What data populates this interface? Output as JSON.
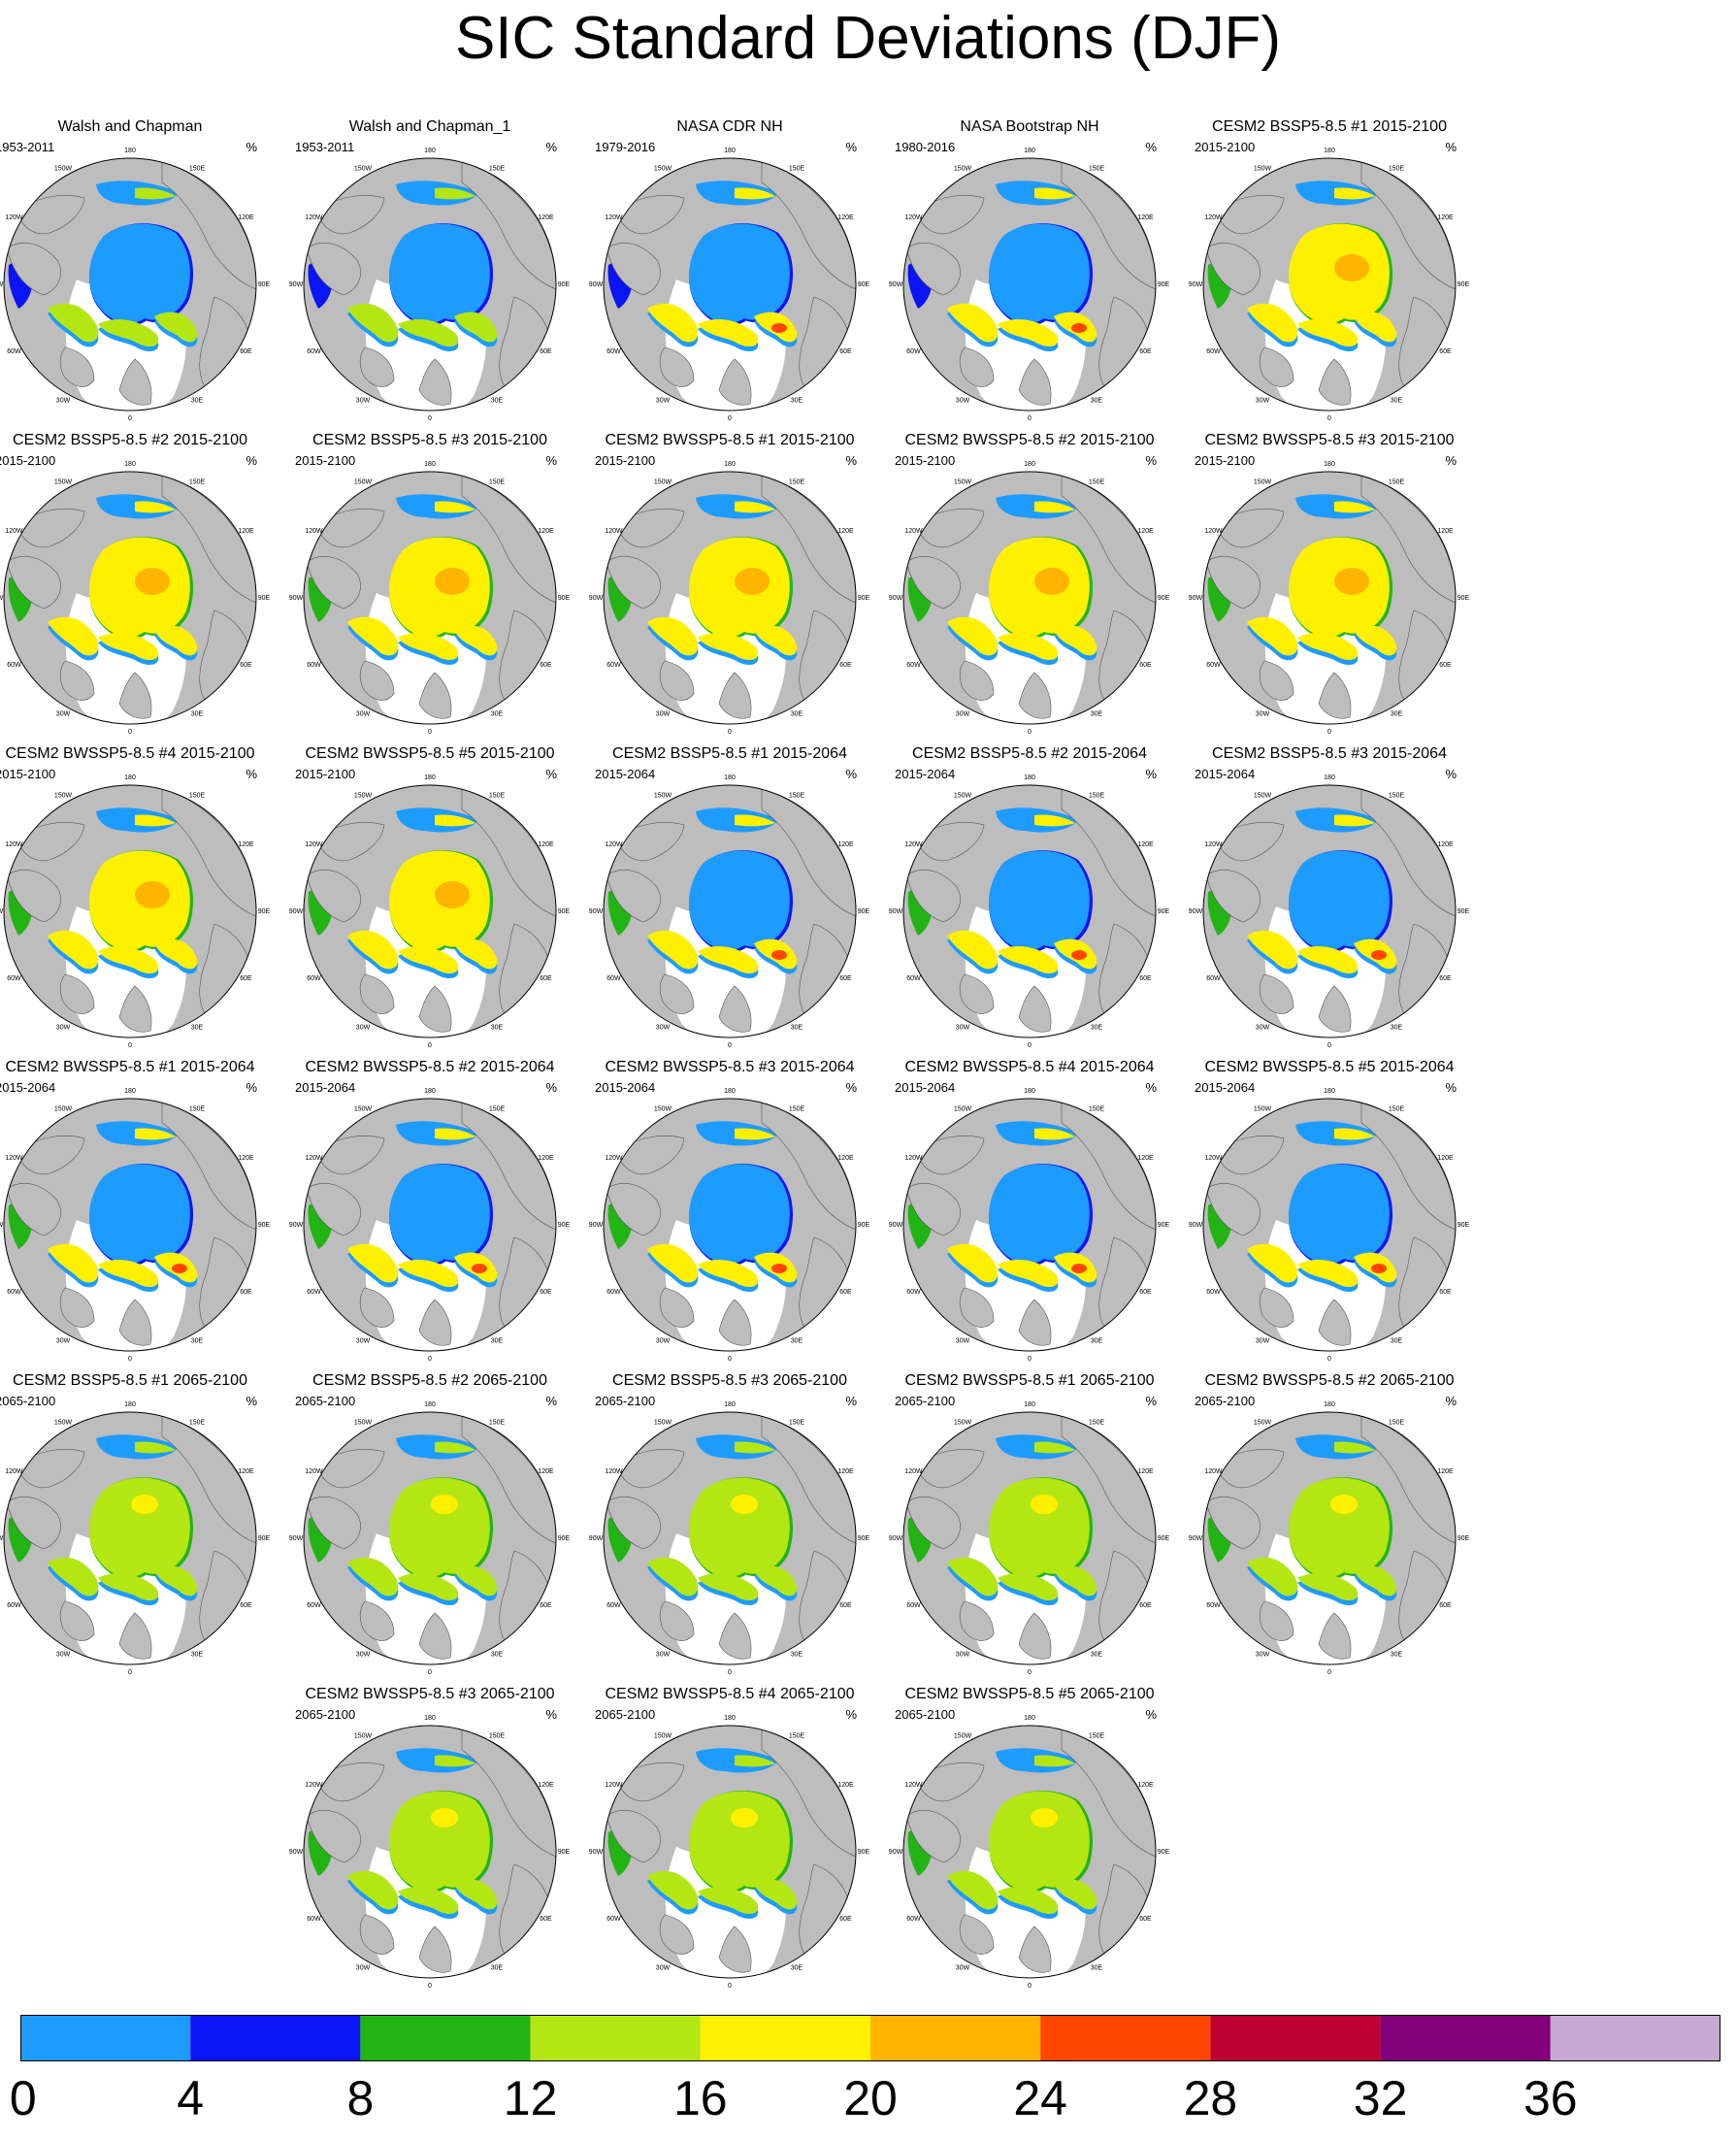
{
  "title": "SIC Standard Deviations (DJF)",
  "unit": "%",
  "lon_labels": [
    "180",
    "150E",
    "120E",
    "90E",
    "60E",
    "30E",
    "0",
    "30W",
    "60W",
    "90W",
    "120W",
    "150W"
  ],
  "chart_data": [
    {
      "type": "heatmap",
      "title": "Walsh and Chapman",
      "period": "1953-2011",
      "pattern": "obs"
    },
    {
      "type": "heatmap",
      "title": "Walsh and Chapman_1",
      "period": "1953-2011",
      "pattern": "obs"
    },
    {
      "type": "heatmap",
      "title": "NASA CDR NH",
      "period": "1979-2016",
      "pattern": "sat"
    },
    {
      "type": "heatmap",
      "title": "NASA Bootstrap NH",
      "period": "1980-2016",
      "pattern": "sat"
    },
    {
      "type": "heatmap",
      "title": "CESM2 BSSP5-8.5 #1 2015-2100",
      "period": "2015-2100",
      "pattern": "full"
    },
    {
      "type": "heatmap",
      "title": "CESM2 BSSP5-8.5 #2 2015-2100",
      "period": "2015-2100",
      "pattern": "full"
    },
    {
      "type": "heatmap",
      "title": "CESM2 BSSP5-8.5 #3 2015-2100",
      "period": "2015-2100",
      "pattern": "full"
    },
    {
      "type": "heatmap",
      "title": "CESM2 BWSSP5-8.5 #1 2015-2100",
      "period": "2015-2100",
      "pattern": "full"
    },
    {
      "type": "heatmap",
      "title": "CESM2 BWSSP5-8.5 #2 2015-2100",
      "period": "2015-2100",
      "pattern": "full"
    },
    {
      "type": "heatmap",
      "title": "CESM2 BWSSP5-8.5 #3 2015-2100",
      "period": "2015-2100",
      "pattern": "full"
    },
    {
      "type": "heatmap",
      "title": "CESM2 BWSSP5-8.5 #4 2015-2100",
      "period": "2015-2100",
      "pattern": "full"
    },
    {
      "type": "heatmap",
      "title": "CESM2 BWSSP5-8.5 #5 2015-2100",
      "period": "2015-2100",
      "pattern": "full"
    },
    {
      "type": "heatmap",
      "title": "CESM2 BSSP5-8.5 #1 2015-2064",
      "period": "2015-2064",
      "pattern": "early"
    },
    {
      "type": "heatmap",
      "title": "CESM2 BSSP5-8.5 #2 2015-2064",
      "period": "2015-2064",
      "pattern": "early"
    },
    {
      "type": "heatmap",
      "title": "CESM2 BSSP5-8.5 #3 2015-2064",
      "period": "2015-2064",
      "pattern": "early"
    },
    {
      "type": "heatmap",
      "title": "CESM2 BWSSP5-8.5 #1 2015-2064",
      "period": "2015-2064",
      "pattern": "early"
    },
    {
      "type": "heatmap",
      "title": "CESM2 BWSSP5-8.5 #2 2015-2064",
      "period": "2015-2064",
      "pattern": "early"
    },
    {
      "type": "heatmap",
      "title": "CESM2 BWSSP5-8.5 #3 2015-2064",
      "period": "2015-2064",
      "pattern": "early"
    },
    {
      "type": "heatmap",
      "title": "CESM2 BWSSP5-8.5 #4 2015-2064",
      "period": "2015-2064",
      "pattern": "early"
    },
    {
      "type": "heatmap",
      "title": "CESM2 BWSSP5-8.5 #5 2015-2064",
      "period": "2015-2064",
      "pattern": "early"
    },
    {
      "type": "heatmap",
      "title": "CESM2 BSSP5-8.5 #1 2065-2100",
      "period": "2065-2100",
      "pattern": "late"
    },
    {
      "type": "heatmap",
      "title": "CESM2 BSSP5-8.5 #2 2065-2100",
      "period": "2065-2100",
      "pattern": "late"
    },
    {
      "type": "heatmap",
      "title": "CESM2 BSSP5-8.5 #3 2065-2100",
      "period": "2065-2100",
      "pattern": "late"
    },
    {
      "type": "heatmap",
      "title": "CESM2 BWSSP5-8.5 #1 2065-2100",
      "period": "2065-2100",
      "pattern": "late"
    },
    {
      "type": "heatmap",
      "title": "CESM2 BWSSP5-8.5 #2 2065-2100",
      "period": "2065-2100",
      "pattern": "late"
    },
    {
      "type": "heatmap",
      "title": "CESM2 BWSSP5-8.5 #3 2065-2100",
      "period": "2065-2100",
      "pattern": "late"
    },
    {
      "type": "heatmap",
      "title": "CESM2 BWSSP5-8.5 #4 2065-2100",
      "period": "2065-2100",
      "pattern": "late"
    },
    {
      "type": "heatmap",
      "title": "CESM2 BWSSP5-8.5 #5 2065-2100",
      "period": "2065-2100",
      "pattern": "late"
    }
  ],
  "colorbar": {
    "ticks": [
      "0",
      "4",
      "8",
      "12",
      "16",
      "20",
      "24",
      "28",
      "32",
      "36"
    ],
    "colors": [
      "#1e9bff",
      "#0a14f5",
      "#22b414",
      "#b4e614",
      "#fff000",
      "#ffb400",
      "#ff4600",
      "#be0032",
      "#820078",
      "#c8aad2"
    ]
  },
  "colors": {
    "land": "#bdbdbd",
    "ocean": "#ffffff"
  }
}
